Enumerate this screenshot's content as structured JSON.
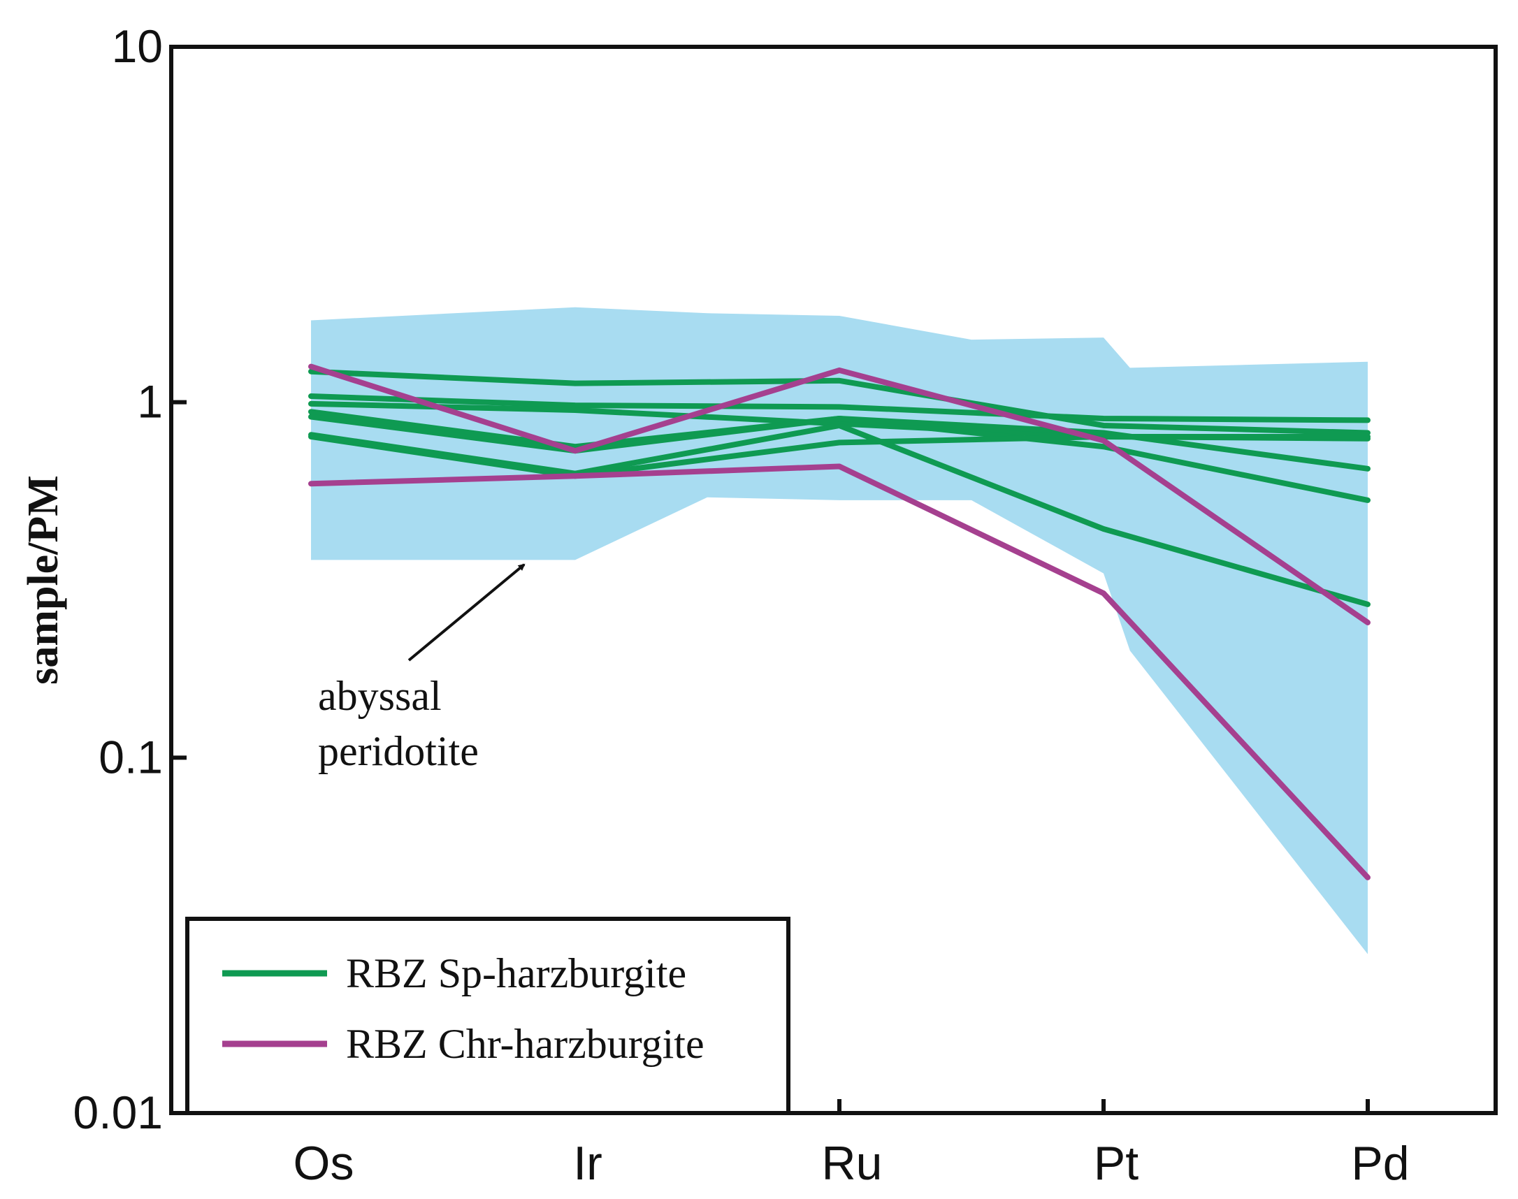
{
  "chart_data": {
    "type": "line",
    "title": "",
    "xlabel": "",
    "ylabel": "sample/PM",
    "yscale": "log",
    "ylim": [
      0.01,
      10
    ],
    "yticks": [
      {
        "value": 10,
        "label": "10"
      },
      {
        "value": 1,
        "label": "1"
      },
      {
        "value": 0.1,
        "label": "0.1"
      },
      {
        "value": 0.01,
        "label": "0.01"
      }
    ],
    "categories": [
      "Os",
      "Ir",
      "Ru",
      "Pt",
      "Pd"
    ],
    "colors": {
      "sp": "#0f9a52",
      "chr": "#a5408f",
      "band": "#a8dcf1",
      "axis": "#111111"
    },
    "band": {
      "name": "abyssal peridotite",
      "x": [
        0,
        1,
        1.5,
        2,
        2.5,
        3,
        3.1,
        4
      ],
      "upper": [
        1.7,
        1.85,
        1.78,
        1.75,
        1.5,
        1.52,
        1.25,
        1.3
      ],
      "lower": [
        0.36,
        0.36,
        0.54,
        0.53,
        0.53,
        0.33,
        0.2,
        0.028
      ]
    },
    "series": [
      {
        "name": "RBZ Sp-harzburgite",
        "group": "sp",
        "values": [
          1.22,
          1.13,
          1.15,
          0.86,
          0.82
        ]
      },
      {
        "name": "RBZ Sp-harzburgite",
        "group": "sp",
        "values": [
          1.04,
          0.98,
          0.97,
          0.9,
          0.89
        ]
      },
      {
        "name": "RBZ Sp-harzburgite",
        "group": "sp",
        "values": [
          0.99,
          0.95,
          0.87,
          0.8,
          0.79
        ]
      },
      {
        "name": "RBZ Sp-harzburgite",
        "group": "sp",
        "values": [
          0.94,
          0.75,
          0.9,
          0.75,
          0.53
        ]
      },
      {
        "name": "RBZ Sp-harzburgite",
        "group": "sp",
        "values": [
          0.91,
          0.73,
          0.9,
          0.82,
          0.65
        ]
      },
      {
        "name": "RBZ Sp-harzburgite",
        "group": "sp",
        "values": [
          0.8,
          0.62,
          0.77,
          0.8,
          0.8
        ]
      },
      {
        "name": "RBZ Sp-harzburgite",
        "group": "sp",
        "values": [
          0.81,
          0.63,
          0.86,
          0.44,
          0.27
        ]
      },
      {
        "name": "RBZ Chr-harzburgite",
        "group": "chr",
        "values": [
          1.26,
          0.73,
          1.23,
          0.78,
          0.24
        ]
      },
      {
        "name": "RBZ Chr-harzburgite",
        "group": "chr",
        "values": [
          0.59,
          0.62,
          0.66,
          0.29,
          0.046
        ]
      }
    ],
    "annotation": {
      "lines": [
        "abyssal",
        "peridotite"
      ]
    },
    "legend": {
      "placement": "bottom-left",
      "items": [
        {
          "label": "RBZ Sp-harzburgite",
          "group": "sp"
        },
        {
          "label": "RBZ Chr-harzburgite",
          "group": "chr"
        }
      ]
    }
  }
}
